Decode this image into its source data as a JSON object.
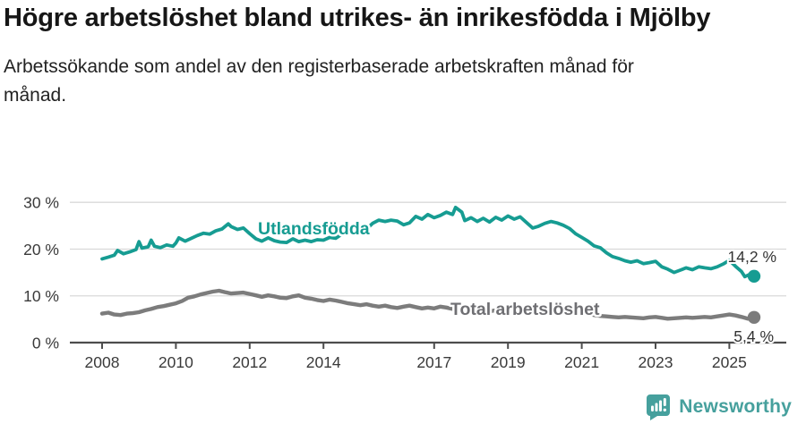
{
  "header": {
    "title": "Högre arbetslöshet bland utrikes- än inrikesfödda i Mjölby",
    "subtitle": "Arbetssökande som andel av den registerbaserade arbetskraften månad för månad."
  },
  "footer": {
    "brand_name": "Newsworthy",
    "brand_color": "#46a09d",
    "logo_icon": "speech-bubble-bar-chart-icon"
  },
  "colors": {
    "series_foreign": "#169c92",
    "series_total": "#7c7c7c",
    "series_total_label": "#6f6f73",
    "grid": "#d9d9d9",
    "axis": "#4d4d4d",
    "tick_text": "#3a3a3a",
    "value_label_text": "#333333"
  },
  "chart_data": {
    "type": "line",
    "title": "Högre arbetslöshet bland utrikes- än inrikesfödda i Mjölby",
    "subtitle": "Arbetssökande som andel av den registerbaserade arbetskraften månad för månad.",
    "unit": "%",
    "grid": "horizontal",
    "legend_position": "inline-labels",
    "x_range": [
      2008,
      2025.67
    ],
    "ylim": [
      0,
      30
    ],
    "y_ticks": [
      0,
      10,
      20,
      30
    ],
    "y_tick_suffix": " %",
    "x_ticks": [
      2008,
      2010,
      2012,
      2014,
      2017,
      2019,
      2021,
      2023,
      2025
    ],
    "series": [
      {
        "name": "Utlandsfödda",
        "color": "#169c92",
        "end_label": "14,2 %",
        "end_value": 14.2,
        "points": [
          [
            2008.0,
            17.9
          ],
          [
            2008.17,
            18.3
          ],
          [
            2008.33,
            18.7
          ],
          [
            2008.42,
            19.7
          ],
          [
            2008.58,
            19.0
          ],
          [
            2008.75,
            19.4
          ],
          [
            2008.92,
            19.9
          ],
          [
            2009.0,
            21.6
          ],
          [
            2009.08,
            20.2
          ],
          [
            2009.25,
            20.5
          ],
          [
            2009.33,
            21.9
          ],
          [
            2009.42,
            20.6
          ],
          [
            2009.58,
            20.3
          ],
          [
            2009.75,
            20.9
          ],
          [
            2009.92,
            20.6
          ],
          [
            2010.0,
            21.3
          ],
          [
            2010.08,
            22.4
          ],
          [
            2010.25,
            21.7
          ],
          [
            2010.42,
            22.3
          ],
          [
            2010.58,
            22.9
          ],
          [
            2010.75,
            23.4
          ],
          [
            2010.92,
            23.2
          ],
          [
            2011.08,
            23.9
          ],
          [
            2011.25,
            24.3
          ],
          [
            2011.42,
            25.4
          ],
          [
            2011.5,
            24.8
          ],
          [
            2011.67,
            24.2
          ],
          [
            2011.83,
            24.5
          ],
          [
            2012.0,
            23.3
          ],
          [
            2012.17,
            22.2
          ],
          [
            2012.33,
            21.7
          ],
          [
            2012.5,
            22.4
          ],
          [
            2012.67,
            21.8
          ],
          [
            2012.83,
            21.5
          ],
          [
            2013.0,
            21.4
          ],
          [
            2013.17,
            22.2
          ],
          [
            2013.33,
            21.6
          ],
          [
            2013.5,
            21.9
          ],
          [
            2013.67,
            21.6
          ],
          [
            2013.83,
            22.0
          ],
          [
            2014.0,
            21.9
          ],
          [
            2014.17,
            22.5
          ],
          [
            2014.33,
            22.3
          ],
          [
            2014.5,
            23.2
          ],
          [
            2014.67,
            23.7
          ],
          [
            2014.83,
            24.1
          ],
          [
            2015.0,
            24.5
          ],
          [
            2015.17,
            24.3
          ],
          [
            2015.33,
            25.5
          ],
          [
            2015.5,
            26.2
          ],
          [
            2015.67,
            25.9
          ],
          [
            2015.83,
            26.2
          ],
          [
            2016.0,
            26.0
          ],
          [
            2016.17,
            25.2
          ],
          [
            2016.33,
            25.6
          ],
          [
            2016.5,
            27.0
          ],
          [
            2016.67,
            26.4
          ],
          [
            2016.83,
            27.4
          ],
          [
            2017.0,
            26.7
          ],
          [
            2017.17,
            27.2
          ],
          [
            2017.33,
            27.9
          ],
          [
            2017.5,
            27.4
          ],
          [
            2017.58,
            28.9
          ],
          [
            2017.75,
            27.9
          ],
          [
            2017.83,
            26.1
          ],
          [
            2018.0,
            26.7
          ],
          [
            2018.17,
            25.9
          ],
          [
            2018.33,
            26.6
          ],
          [
            2018.5,
            25.8
          ],
          [
            2018.67,
            26.8
          ],
          [
            2018.83,
            26.2
          ],
          [
            2019.0,
            27.1
          ],
          [
            2019.17,
            26.4
          ],
          [
            2019.33,
            26.9
          ],
          [
            2019.5,
            25.7
          ],
          [
            2019.67,
            24.5
          ],
          [
            2019.83,
            24.9
          ],
          [
            2020.0,
            25.5
          ],
          [
            2020.17,
            25.9
          ],
          [
            2020.33,
            25.6
          ],
          [
            2020.5,
            25.1
          ],
          [
            2020.67,
            24.4
          ],
          [
            2020.83,
            23.3
          ],
          [
            2021.0,
            22.5
          ],
          [
            2021.17,
            21.7
          ],
          [
            2021.33,
            20.7
          ],
          [
            2021.5,
            20.3
          ],
          [
            2021.67,
            19.2
          ],
          [
            2021.83,
            18.4
          ],
          [
            2022.0,
            18.0
          ],
          [
            2022.17,
            17.5
          ],
          [
            2022.33,
            17.2
          ],
          [
            2022.5,
            17.5
          ],
          [
            2022.67,
            16.9
          ],
          [
            2022.83,
            17.1
          ],
          [
            2023.0,
            17.4
          ],
          [
            2023.17,
            16.2
          ],
          [
            2023.33,
            15.7
          ],
          [
            2023.5,
            15.0
          ],
          [
            2023.67,
            15.5
          ],
          [
            2023.83,
            16.0
          ],
          [
            2024.0,
            15.6
          ],
          [
            2024.17,
            16.2
          ],
          [
            2024.33,
            16.0
          ],
          [
            2024.5,
            15.8
          ],
          [
            2024.67,
            16.2
          ],
          [
            2024.83,
            16.8
          ],
          [
            2025.0,
            17.6
          ],
          [
            2025.17,
            16.3
          ],
          [
            2025.33,
            15.2
          ],
          [
            2025.42,
            14.1
          ],
          [
            2025.58,
            14.7
          ],
          [
            2025.67,
            14.2
          ]
        ]
      },
      {
        "name": "Total arbetslöshet",
        "color": "#7c7c7c",
        "end_label": "5,4 %",
        "end_value": 5.4,
        "points": [
          [
            2008.0,
            6.2
          ],
          [
            2008.17,
            6.4
          ],
          [
            2008.33,
            6.0
          ],
          [
            2008.5,
            5.9
          ],
          [
            2008.67,
            6.2
          ],
          [
            2008.83,
            6.3
          ],
          [
            2009.0,
            6.5
          ],
          [
            2009.17,
            6.9
          ],
          [
            2009.33,
            7.2
          ],
          [
            2009.5,
            7.6
          ],
          [
            2009.67,
            7.8
          ],
          [
            2009.83,
            8.1
          ],
          [
            2010.0,
            8.4
          ],
          [
            2010.17,
            8.9
          ],
          [
            2010.33,
            9.6
          ],
          [
            2010.5,
            9.9
          ],
          [
            2010.67,
            10.3
          ],
          [
            2010.83,
            10.6
          ],
          [
            2011.0,
            10.9
          ],
          [
            2011.17,
            11.1
          ],
          [
            2011.33,
            10.8
          ],
          [
            2011.5,
            10.5
          ],
          [
            2011.67,
            10.6
          ],
          [
            2011.83,
            10.7
          ],
          [
            2012.0,
            10.4
          ],
          [
            2012.17,
            10.1
          ],
          [
            2012.33,
            9.8
          ],
          [
            2012.5,
            10.1
          ],
          [
            2012.67,
            9.9
          ],
          [
            2012.83,
            9.6
          ],
          [
            2013.0,
            9.5
          ],
          [
            2013.17,
            9.9
          ],
          [
            2013.33,
            10.1
          ],
          [
            2013.5,
            9.6
          ],
          [
            2013.67,
            9.4
          ],
          [
            2013.83,
            9.1
          ],
          [
            2014.0,
            8.9
          ],
          [
            2014.17,
            9.2
          ],
          [
            2014.33,
            9.0
          ],
          [
            2014.5,
            8.7
          ],
          [
            2014.67,
            8.4
          ],
          [
            2014.83,
            8.2
          ],
          [
            2015.0,
            8.0
          ],
          [
            2015.17,
            8.2
          ],
          [
            2015.33,
            7.9
          ],
          [
            2015.5,
            7.7
          ],
          [
            2015.67,
            7.9
          ],
          [
            2015.83,
            7.6
          ],
          [
            2016.0,
            7.4
          ],
          [
            2016.17,
            7.7
          ],
          [
            2016.33,
            7.9
          ],
          [
            2016.5,
            7.6
          ],
          [
            2016.67,
            7.3
          ],
          [
            2016.83,
            7.5
          ],
          [
            2017.0,
            7.3
          ],
          [
            2017.17,
            7.7
          ],
          [
            2017.33,
            7.5
          ],
          [
            2017.5,
            7.2
          ],
          [
            2017.67,
            7.0
          ],
          [
            2017.83,
            7.2
          ],
          [
            2018.0,
            7.0
          ],
          [
            2018.17,
            7.2
          ],
          [
            2018.33,
            6.9
          ],
          [
            2018.5,
            6.7
          ],
          [
            2018.67,
            6.9
          ],
          [
            2018.83,
            6.6
          ],
          [
            2019.0,
            6.8
          ],
          [
            2019.17,
            6.9
          ],
          [
            2019.33,
            6.6
          ],
          [
            2019.5,
            6.4
          ],
          [
            2019.67,
            6.6
          ],
          [
            2019.83,
            6.7
          ],
          [
            2020.0,
            6.9
          ],
          [
            2020.17,
            7.1
          ],
          [
            2020.33,
            7.0
          ],
          [
            2020.5,
            6.7
          ],
          [
            2020.67,
            6.4
          ],
          [
            2020.83,
            6.2
          ],
          [
            2021.0,
            6.1
          ],
          [
            2021.17,
            6.2
          ],
          [
            2021.33,
            5.9
          ],
          [
            2021.5,
            5.7
          ],
          [
            2021.67,
            5.6
          ],
          [
            2021.83,
            5.5
          ],
          [
            2022.0,
            5.4
          ],
          [
            2022.17,
            5.5
          ],
          [
            2022.33,
            5.4
          ],
          [
            2022.5,
            5.3
          ],
          [
            2022.67,
            5.2
          ],
          [
            2022.83,
            5.4
          ],
          [
            2023.0,
            5.5
          ],
          [
            2023.17,
            5.3
          ],
          [
            2023.33,
            5.1
          ],
          [
            2023.5,
            5.2
          ],
          [
            2023.67,
            5.3
          ],
          [
            2023.83,
            5.4
          ],
          [
            2024.0,
            5.3
          ],
          [
            2024.17,
            5.4
          ],
          [
            2024.33,
            5.5
          ],
          [
            2024.5,
            5.4
          ],
          [
            2024.67,
            5.6
          ],
          [
            2024.83,
            5.8
          ],
          [
            2025.0,
            6.0
          ],
          [
            2025.17,
            5.8
          ],
          [
            2025.33,
            5.5
          ],
          [
            2025.5,
            5.1
          ],
          [
            2025.67,
            5.4
          ]
        ]
      }
    ]
  }
}
